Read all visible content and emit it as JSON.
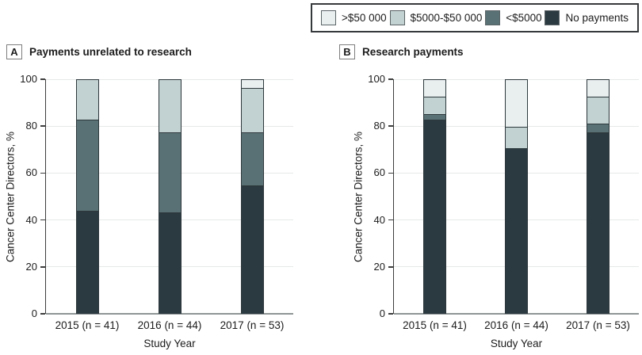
{
  "legend": {
    "items": [
      {
        "label": ">$50 000",
        "color": "#e9efef"
      },
      {
        "label": "$5000-$50 000",
        "color": "#c2d1d1"
      },
      {
        "label": "<$5000",
        "color": "#597174"
      },
      {
        "label": "No payments",
        "color": "#2b3940"
      }
    ]
  },
  "panels": [
    {
      "letter": "A",
      "title": "Payments unrelated to research"
    },
    {
      "letter": "B",
      "title": "Research payments"
    }
  ],
  "chart_data": [
    {
      "type": "bar",
      "stacked": true,
      "title": "Payments unrelated to research",
      "categories": [
        "2015 (n = 41)",
        "2016 (n = 44)",
        "2017 (n = 53)"
      ],
      "series": [
        {
          "name": "No payments",
          "color": "#2b3940",
          "values": [
            43.9,
            43.2,
            54.7
          ]
        },
        {
          "name": "<$5000",
          "color": "#597174",
          "values": [
            39.0,
            34.1,
            22.6
          ]
        },
        {
          "name": "$5000-$50 000",
          "color": "#c2d1d1",
          "values": [
            17.1,
            22.7,
            18.9
          ]
        },
        {
          "name": ">$50 000",
          "color": "#e9efef",
          "values": [
            0,
            0,
            3.8
          ]
        }
      ],
      "xlabel": "Study Year",
      "ylabel": "Cancer Center Directors, %",
      "ylim": [
        0,
        100
      ],
      "yticks": [
        0,
        20,
        40,
        60,
        80,
        100
      ],
      "grid": true,
      "legend_position": "top-right"
    },
    {
      "type": "bar",
      "stacked": true,
      "title": "Research payments",
      "categories": [
        "2015 (n = 41)",
        "2016 (n = 44)",
        "2017 (n = 53)"
      ],
      "series": [
        {
          "name": "No payments",
          "color": "#2b3940",
          "values": [
            82.9,
            70.5,
            77.4
          ]
        },
        {
          "name": "<$5000",
          "color": "#597174",
          "values": [
            2.4,
            0,
            3.8
          ]
        },
        {
          "name": "$5000-$50 000",
          "color": "#c2d1d1",
          "values": [
            7.3,
            9.1,
            11.3
          ]
        },
        {
          "name": ">$50 000",
          "color": "#e9efef",
          "values": [
            7.4,
            20.4,
            7.5
          ]
        }
      ],
      "xlabel": "Study Year",
      "ylabel": "Cancer Center Directors, %",
      "ylim": [
        0,
        100
      ],
      "yticks": [
        0,
        20,
        40,
        60,
        80,
        100
      ],
      "grid": true,
      "legend_position": "top-right"
    }
  ]
}
